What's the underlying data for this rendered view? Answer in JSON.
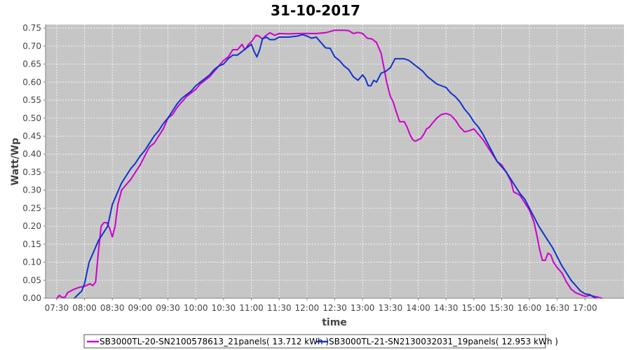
{
  "chart_data": {
    "type": "line",
    "title": "31-10-2017",
    "xlabel": "time",
    "ylabel": "Watt/Wp",
    "ylim": [
      0,
      0.76
    ],
    "y_ticks": [
      0.0,
      0.05,
      0.1,
      0.15,
      0.2,
      0.25,
      0.3,
      0.35,
      0.4,
      0.45,
      0.5,
      0.55,
      0.6,
      0.65,
      0.7,
      0.75
    ],
    "y_tick_labels": [
      "0.00",
      "0.05",
      "0.10",
      "0.15",
      "0.20",
      "0.25",
      "0.30",
      "0.35",
      "0.40",
      "0.45",
      "0.50",
      "0.55",
      "0.60",
      "0.65",
      "0.70",
      "0.75"
    ],
    "x_ticks": [
      "07:30",
      "08:00",
      "08:30",
      "09:00",
      "09:30",
      "10:00",
      "10:30",
      "11:00",
      "11:30",
      "12:00",
      "12:30",
      "13:00",
      "13:30",
      "14:00",
      "14:30",
      "15:00",
      "15:30",
      "16:00",
      "16:30",
      "17:00"
    ],
    "xlim": [
      "07:18",
      "17:42"
    ],
    "grid": true,
    "legend_position": "bottom",
    "series": [
      {
        "name": "SB3000TL-20-SN2100578613_21panels( 13.712 kWh )",
        "color": "#cc00cc",
        "points": [
          [
            "07:30",
            0.0
          ],
          [
            "07:33",
            0.008
          ],
          [
            "07:36",
            0.002
          ],
          [
            "07:39",
            0.003
          ],
          [
            "07:42",
            0.016
          ],
          [
            "07:48",
            0.024
          ],
          [
            "07:54",
            0.03
          ],
          [
            "08:00",
            0.033
          ],
          [
            "08:06",
            0.04
          ],
          [
            "08:09",
            0.035
          ],
          [
            "08:12",
            0.045
          ],
          [
            "08:15",
            0.13
          ],
          [
            "08:18",
            0.2
          ],
          [
            "08:21",
            0.21
          ],
          [
            "08:24",
            0.21
          ],
          [
            "08:27",
            0.195
          ],
          [
            "08:30",
            0.17
          ],
          [
            "08:33",
            0.2
          ],
          [
            "08:36",
            0.26
          ],
          [
            "08:40",
            0.3
          ],
          [
            "08:45",
            0.315
          ],
          [
            "08:50",
            0.33
          ],
          [
            "08:55",
            0.35
          ],
          [
            "09:00",
            0.37
          ],
          [
            "09:05",
            0.395
          ],
          [
            "09:10",
            0.42
          ],
          [
            "09:15",
            0.43
          ],
          [
            "09:20",
            0.45
          ],
          [
            "09:25",
            0.47
          ],
          [
            "09:30",
            0.5
          ],
          [
            "09:35",
            0.51
          ],
          [
            "09:40",
            0.53
          ],
          [
            "09:45",
            0.545
          ],
          [
            "09:50",
            0.56
          ],
          [
            "09:55",
            0.57
          ],
          [
            "10:00",
            0.58
          ],
          [
            "10:05",
            0.595
          ],
          [
            "10:10",
            0.605
          ],
          [
            "10:15",
            0.615
          ],
          [
            "10:20",
            0.63
          ],
          [
            "10:25",
            0.645
          ],
          [
            "10:30",
            0.66
          ],
          [
            "10:35",
            0.67
          ],
          [
            "10:40",
            0.69
          ],
          [
            "10:45",
            0.69
          ],
          [
            "10:50",
            0.705
          ],
          [
            "10:53",
            0.69
          ],
          [
            "10:57",
            0.705
          ],
          [
            "11:00",
            0.712
          ],
          [
            "11:05",
            0.73
          ],
          [
            "11:08",
            0.728
          ],
          [
            "11:12",
            0.72
          ],
          [
            "11:16",
            0.73
          ],
          [
            "11:20",
            0.737
          ],
          [
            "11:25",
            0.73
          ],
          [
            "11:30",
            0.735
          ],
          [
            "11:40",
            0.734
          ],
          [
            "11:50",
            0.735
          ],
          [
            "12:00",
            0.735
          ],
          [
            "12:10",
            0.735
          ],
          [
            "12:20",
            0.737
          ],
          [
            "12:30",
            0.744
          ],
          [
            "12:40",
            0.744
          ],
          [
            "12:45",
            0.743
          ],
          [
            "12:50",
            0.735
          ],
          [
            "12:55",
            0.738
          ],
          [
            "13:00",
            0.735
          ],
          [
            "13:05",
            0.722
          ],
          [
            "13:10",
            0.72
          ],
          [
            "13:15",
            0.71
          ],
          [
            "13:20",
            0.68
          ],
          [
            "13:23",
            0.64
          ],
          [
            "13:26",
            0.6
          ],
          [
            "13:30",
            0.56
          ],
          [
            "13:33",
            0.545
          ],
          [
            "13:36",
            0.52
          ],
          [
            "13:40",
            0.49
          ],
          [
            "13:45",
            0.49
          ],
          [
            "13:48",
            0.475
          ],
          [
            "13:51",
            0.455
          ],
          [
            "13:54",
            0.44
          ],
          [
            "13:57",
            0.436
          ],
          [
            "14:00",
            0.44
          ],
          [
            "14:03",
            0.444
          ],
          [
            "14:06",
            0.455
          ],
          [
            "14:09",
            0.47
          ],
          [
            "14:12",
            0.475
          ],
          [
            "14:15",
            0.485
          ],
          [
            "14:20",
            0.5
          ],
          [
            "14:25",
            0.51
          ],
          [
            "14:30",
            0.513
          ],
          [
            "14:35",
            0.508
          ],
          [
            "14:40",
            0.495
          ],
          [
            "14:45",
            0.475
          ],
          [
            "14:50",
            0.462
          ],
          [
            "14:55",
            0.465
          ],
          [
            "15:00",
            0.47
          ],
          [
            "15:05",
            0.455
          ],
          [
            "15:10",
            0.44
          ],
          [
            "15:15",
            0.42
          ],
          [
            "15:20",
            0.4
          ],
          [
            "15:25",
            0.38
          ],
          [
            "15:30",
            0.37
          ],
          [
            "15:35",
            0.35
          ],
          [
            "15:40",
            0.325
          ],
          [
            "15:43",
            0.295
          ],
          [
            "15:47",
            0.29
          ],
          [
            "15:50",
            0.285
          ],
          [
            "15:55",
            0.265
          ],
          [
            "16:00",
            0.245
          ],
          [
            "16:05",
            0.21
          ],
          [
            "16:08",
            0.175
          ],
          [
            "16:11",
            0.135
          ],
          [
            "16:14",
            0.105
          ],
          [
            "16:17",
            0.105
          ],
          [
            "16:20",
            0.125
          ],
          [
            "16:23",
            0.12
          ],
          [
            "16:26",
            0.1
          ],
          [
            "16:30",
            0.085
          ],
          [
            "16:35",
            0.07
          ],
          [
            "16:40",
            0.045
          ],
          [
            "16:45",
            0.025
          ],
          [
            "16:50",
            0.015
          ],
          [
            "16:55",
            0.01
          ],
          [
            "17:00",
            0.005
          ],
          [
            "17:05",
            0.008
          ],
          [
            "17:10",
            0.005
          ],
          [
            "17:15",
            0.002
          ],
          [
            "17:18",
            0.0
          ]
        ]
      },
      {
        "name": "SB3000TL-21-SN2130032031_19panels( 12.953 kWh )",
        "color": "#1133cc",
        "points": [
          [
            "07:49",
            0.0
          ],
          [
            "07:53",
            0.01
          ],
          [
            "07:57",
            0.02
          ],
          [
            "08:00",
            0.04
          ],
          [
            "08:05",
            0.1
          ],
          [
            "08:10",
            0.13
          ],
          [
            "08:15",
            0.16
          ],
          [
            "08:20",
            0.18
          ],
          [
            "08:25",
            0.2
          ],
          [
            "08:30",
            0.26
          ],
          [
            "08:35",
            0.29
          ],
          [
            "08:40",
            0.32
          ],
          [
            "08:45",
            0.34
          ],
          [
            "08:50",
            0.36
          ],
          [
            "08:55",
            0.375
          ],
          [
            "09:00",
            0.395
          ],
          [
            "09:05",
            0.41
          ],
          [
            "09:10",
            0.43
          ],
          [
            "09:15",
            0.45
          ],
          [
            "09:20",
            0.465
          ],
          [
            "09:25",
            0.485
          ],
          [
            "09:30",
            0.5
          ],
          [
            "09:35",
            0.52
          ],
          [
            "09:40",
            0.54
          ],
          [
            "09:45",
            0.555
          ],
          [
            "09:50",
            0.565
          ],
          [
            "09:55",
            0.575
          ],
          [
            "10:00",
            0.59
          ],
          [
            "10:05",
            0.6
          ],
          [
            "10:10",
            0.61
          ],
          [
            "10:15",
            0.62
          ],
          [
            "10:20",
            0.635
          ],
          [
            "10:25",
            0.645
          ],
          [
            "10:30",
            0.65
          ],
          [
            "10:35",
            0.665
          ],
          [
            "10:40",
            0.675
          ],
          [
            "10:45",
            0.675
          ],
          [
            "10:50",
            0.685
          ],
          [
            "10:55",
            0.695
          ],
          [
            "11:00",
            0.705
          ],
          [
            "11:03",
            0.685
          ],
          [
            "11:06",
            0.67
          ],
          [
            "11:09",
            0.69
          ],
          [
            "11:12",
            0.72
          ],
          [
            "11:16",
            0.725
          ],
          [
            "11:20",
            0.718
          ],
          [
            "11:25",
            0.718
          ],
          [
            "11:30",
            0.725
          ],
          [
            "11:40",
            0.725
          ],
          [
            "11:50",
            0.728
          ],
          [
            "11:55",
            0.732
          ],
          [
            "12:00",
            0.728
          ],
          [
            "12:05",
            0.722
          ],
          [
            "12:10",
            0.725
          ],
          [
            "12:15",
            0.71
          ],
          [
            "12:20",
            0.695
          ],
          [
            "12:25",
            0.694
          ],
          [
            "12:30",
            0.67
          ],
          [
            "12:35",
            0.66
          ],
          [
            "12:40",
            0.645
          ],
          [
            "12:45",
            0.635
          ],
          [
            "12:50",
            0.615
          ],
          [
            "12:55",
            0.605
          ],
          [
            "13:00",
            0.62
          ],
          [
            "13:03",
            0.61
          ],
          [
            "13:06",
            0.59
          ],
          [
            "13:09",
            0.59
          ],
          [
            "13:12",
            0.605
          ],
          [
            "13:15",
            0.6
          ],
          [
            "13:20",
            0.625
          ],
          [
            "13:25",
            0.63
          ],
          [
            "13:30",
            0.64
          ],
          [
            "13:35",
            0.665
          ],
          [
            "13:40",
            0.665
          ],
          [
            "13:45",
            0.665
          ],
          [
            "13:50",
            0.66
          ],
          [
            "13:55",
            0.65
          ],
          [
            "14:00",
            0.64
          ],
          [
            "14:05",
            0.63
          ],
          [
            "14:10",
            0.615
          ],
          [
            "14:15",
            0.605
          ],
          [
            "14:20",
            0.595
          ],
          [
            "14:25",
            0.59
          ],
          [
            "14:30",
            0.585
          ],
          [
            "14:35",
            0.57
          ],
          [
            "14:40",
            0.56
          ],
          [
            "14:45",
            0.545
          ],
          [
            "14:50",
            0.525
          ],
          [
            "14:55",
            0.51
          ],
          [
            "15:00",
            0.49
          ],
          [
            "15:05",
            0.475
          ],
          [
            "15:10",
            0.455
          ],
          [
            "15:15",
            0.43
          ],
          [
            "15:20",
            0.405
          ],
          [
            "15:25",
            0.38
          ],
          [
            "15:30",
            0.365
          ],
          [
            "15:35",
            0.35
          ],
          [
            "15:40",
            0.33
          ],
          [
            "15:45",
            0.31
          ],
          [
            "15:50",
            0.29
          ],
          [
            "15:55",
            0.275
          ],
          [
            "16:00",
            0.25
          ],
          [
            "16:05",
            0.225
          ],
          [
            "16:10",
            0.2
          ],
          [
            "16:15",
            0.18
          ],
          [
            "16:20",
            0.16
          ],
          [
            "16:25",
            0.14
          ],
          [
            "16:30",
            0.115
          ],
          [
            "16:35",
            0.09
          ],
          [
            "16:40",
            0.07
          ],
          [
            "16:45",
            0.05
          ],
          [
            "16:50",
            0.035
          ],
          [
            "16:55",
            0.02
          ],
          [
            "17:00",
            0.012
          ],
          [
            "17:05",
            0.01
          ],
          [
            "17:10",
            0.002
          ],
          [
            "17:12",
            0.0
          ]
        ]
      }
    ]
  }
}
